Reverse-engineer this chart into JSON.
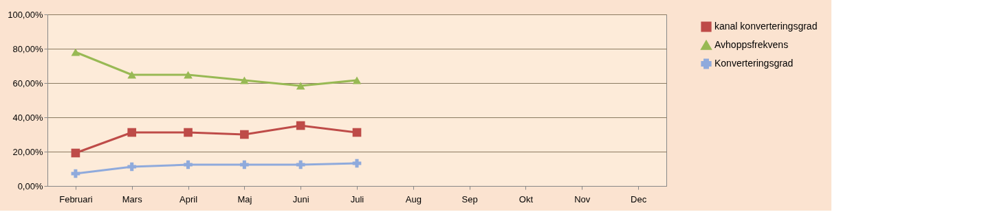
{
  "chart_data": {
    "type": "line",
    "categories": [
      "Februari",
      "Mars",
      "April",
      "Maj",
      "Juni",
      "Juli",
      "Aug",
      "Sep",
      "Okt",
      "Nov",
      "Dec"
    ],
    "series": [
      {
        "name": "kanal konverteringsgrad",
        "color": "#be4b48",
        "marker": "square",
        "values": [
          19.2,
          31.2,
          31.2,
          30,
          35.2,
          31.2,
          null,
          null,
          null,
          null,
          null
        ]
      },
      {
        "name": "Avhoppsfrekvens",
        "color": "#98b954",
        "marker": "triangle",
        "values": [
          78,
          64.8,
          64.8,
          61.6,
          58.4,
          61.6,
          null,
          null,
          null,
          null,
          null
        ]
      },
      {
        "name": "Konverteringsgrad",
        "color": "#8faadc",
        "marker": "cross",
        "values": [
          7.2,
          11.2,
          12.4,
          12.4,
          12.4,
          13.2,
          null,
          null,
          null,
          null,
          null
        ]
      }
    ],
    "ylim": [
      0,
      100
    ],
    "yticks": [
      {
        "value": 0,
        "label": "0,00%"
      },
      {
        "value": 20,
        "label": "20,00%"
      },
      {
        "value": 40,
        "label": "40,00%"
      },
      {
        "value": 60,
        "label": "60,00%"
      },
      {
        "value": 80,
        "label": "80,00%"
      },
      {
        "value": 100,
        "label": "100,00%"
      }
    ],
    "grid": "y",
    "legend": "right",
    "line_style": "solid"
  }
}
